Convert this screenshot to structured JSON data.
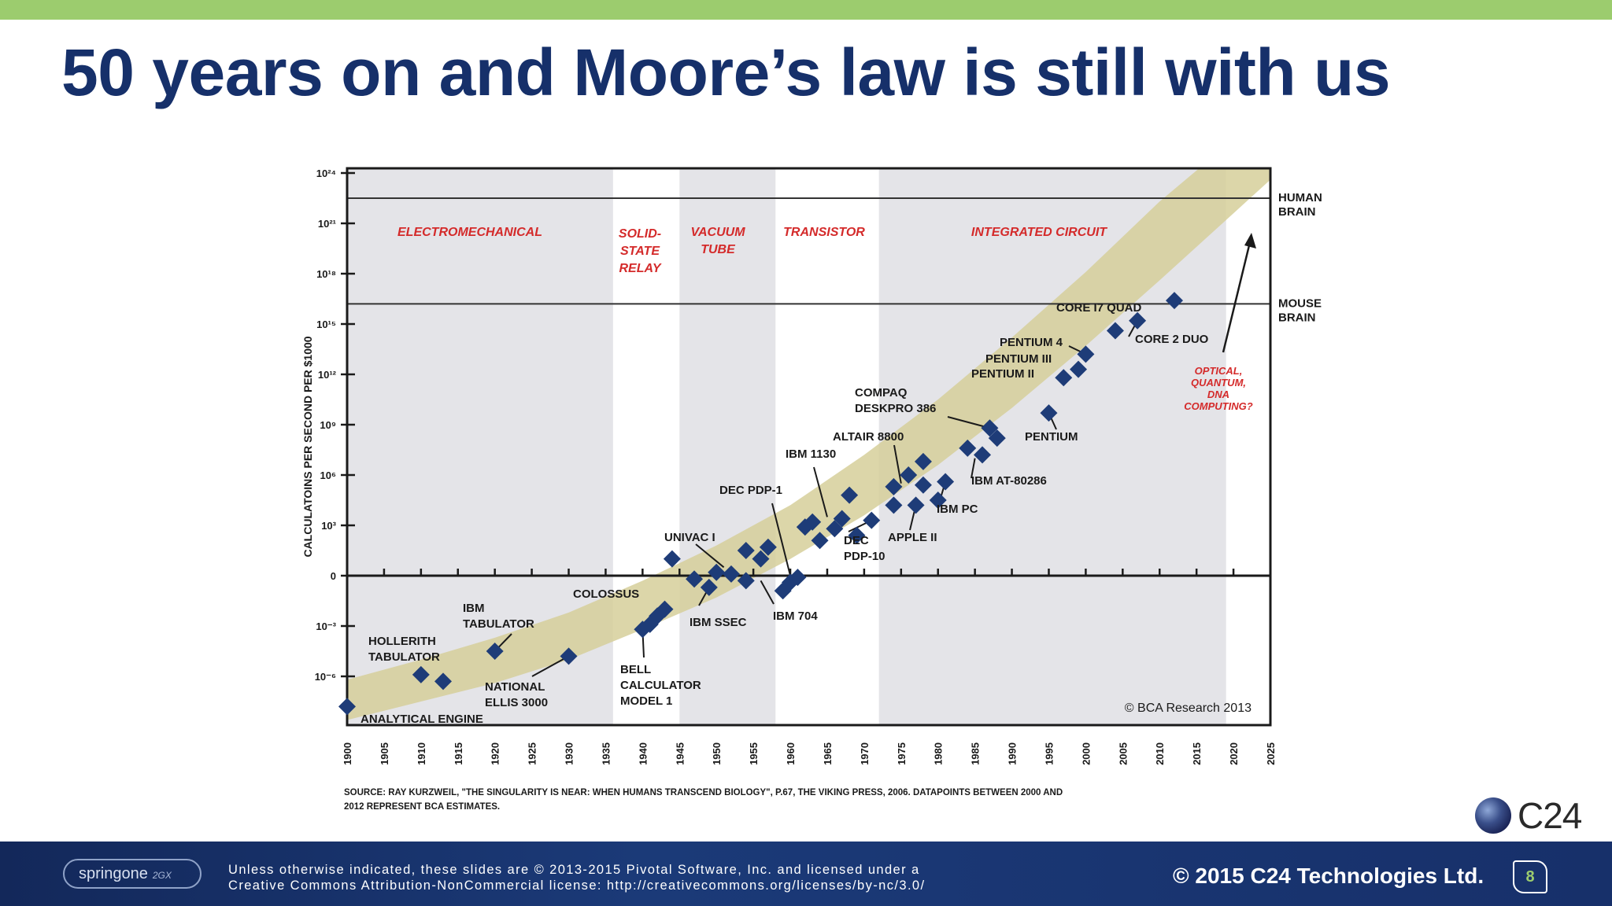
{
  "slide": {
    "title": "50 years on and Moore’s law is still with us"
  },
  "chart_data": {
    "type": "scatter",
    "ylabel": "CALCULATOINS PER SECOND PER $1000",
    "xlim": [
      1900,
      2025
    ],
    "x_ticks": [
      1900,
      1905,
      1910,
      1915,
      1920,
      1925,
      1930,
      1935,
      1940,
      1945,
      1950,
      1955,
      1960,
      1965,
      1970,
      1975,
      1980,
      1985,
      1990,
      1995,
      2000,
      2005,
      2010,
      2015,
      2020,
      2025
    ],
    "y_ticks": [
      {
        "exp": -6,
        "label": "10⁻⁶"
      },
      {
        "exp": -3,
        "label": "10⁻³"
      },
      {
        "exp": 0,
        "label": "0"
      },
      {
        "exp": 3,
        "label": "10³"
      },
      {
        "exp": 6,
        "label": "10⁶"
      },
      {
        "exp": 9,
        "label": "10⁹"
      },
      {
        "exp": 12,
        "label": "10¹²"
      },
      {
        "exp": 15,
        "label": "10¹⁵"
      },
      {
        "exp": 18,
        "label": "10¹⁸"
      },
      {
        "exp": 21,
        "label": "10²¹"
      },
      {
        "exp": 24,
        "label": "10²⁴"
      }
    ],
    "eras": [
      {
        "label": "ELECTROMECHANICAL",
        "start": 1900,
        "end": 1936,
        "shaded": true
      },
      {
        "label": "SOLID-\nSTATE\nRELAY",
        "start": 1936,
        "end": 1945,
        "shaded": false
      },
      {
        "label": "VACUUM\nTUBE",
        "start": 1945,
        "end": 1958,
        "shaded": true
      },
      {
        "label": "TRANSISTOR",
        "start": 1958,
        "end": 1972,
        "shaded": false
      },
      {
        "label": "INTEGRATED CIRCUIT",
        "start": 1972,
        "end": 2019,
        "shaded": true
      }
    ],
    "reference_lines": [
      {
        "label": "HUMAN\nBRAIN",
        "exp": 22.5
      },
      {
        "label": "MOUSE\nBRAIN",
        "exp": 16.2
      }
    ],
    "band": {
      "lower": [
        [
          1900,
          -8.6
        ],
        [
          1910,
          -7.5
        ],
        [
          1920,
          -6.4
        ],
        [
          1930,
          -5
        ],
        [
          1940,
          -3.2
        ],
        [
          1950,
          -1.3
        ],
        [
          1960,
          1
        ],
        [
          1970,
          3.6
        ],
        [
          1980,
          6.6
        ],
        [
          1990,
          10
        ],
        [
          2000,
          13.7
        ],
        [
          2010,
          17.6
        ],
        [
          2020,
          21.6
        ],
        [
          2025,
          23.6
        ]
      ],
      "upper": [
        [
          1900,
          -6.2
        ],
        [
          1910,
          -5
        ],
        [
          1920,
          -3.7
        ],
        [
          1930,
          -2.2
        ],
        [
          1940,
          -0.3
        ],
        [
          1950,
          1.8
        ],
        [
          1960,
          4.2
        ],
        [
          1970,
          7.2
        ],
        [
          1980,
          10.5
        ],
        [
          1990,
          14.2
        ],
        [
          2000,
          18.1
        ],
        [
          2010,
          22.3
        ],
        [
          2020,
          26
        ],
        [
          2025,
          27
        ]
      ]
    },
    "points": [
      [
        1900,
        -7.8
      ],
      [
        1910,
        -5.9
      ],
      [
        1913,
        -6.3
      ],
      [
        1920,
        -4.5
      ],
      [
        1930,
        -4.8
      ],
      [
        1940,
        -3.2
      ],
      [
        1941,
        -2.9
      ],
      [
        1942,
        -2.4
      ],
      [
        1943,
        -2.0
      ],
      [
        1944,
        1.0
      ],
      [
        1947,
        -0.2
      ],
      [
        1949,
        -0.7
      ],
      [
        1950,
        0.2
      ],
      [
        1952,
        0.1
      ],
      [
        1954,
        1.5
      ],
      [
        1954,
        -0.3
      ],
      [
        1956,
        1.0
      ],
      [
        1957,
        1.7
      ],
      [
        1959,
        -0.9
      ],
      [
        1960,
        -0.4
      ],
      [
        1961,
        -0.1
      ],
      [
        1962,
        2.9
      ],
      [
        1963,
        3.2
      ],
      [
        1964,
        2.1
      ],
      [
        1966,
        2.8
      ],
      [
        1967,
        3.4
      ],
      [
        1968,
        4.8
      ],
      [
        1969,
        2.4
      ],
      [
        1971,
        3.3
      ],
      [
        1974,
        4.2
      ],
      [
        1974,
        5.3
      ],
      [
        1976,
        6.0
      ],
      [
        1977,
        4.2
      ],
      [
        1978,
        5.4
      ],
      [
        1978,
        6.8
      ],
      [
        1980,
        4.5
      ],
      [
        1981,
        5.6
      ],
      [
        1984,
        7.6
      ],
      [
        1986,
        7.2
      ],
      [
        1987,
        8.8
      ],
      [
        1988,
        8.2
      ],
      [
        1995,
        9.7
      ],
      [
        1997,
        11.8
      ],
      [
        1999,
        12.3
      ],
      [
        2000,
        13.2
      ],
      [
        2004,
        14.6
      ],
      [
        2007,
        15.2
      ],
      [
        2012,
        16.4
      ]
    ],
    "annotations": [
      {
        "text": "ANALYTICAL ENGINE",
        "x": 1900,
        "y": -7.8
      },
      {
        "text": "HOLLERITH\nTABULATOR",
        "x": 1910,
        "y": -5.9
      },
      {
        "text": "IBM\nTABULATOR",
        "x": 1920,
        "y": -4.5
      },
      {
        "text": "NATIONAL\nELLIS 3000",
        "x": 1930,
        "y": -4.8
      },
      {
        "text": "COLOSSUS",
        "x": 1943,
        "y": -2.0
      },
      {
        "text": "BELL\nCALCULATOR\nMODEL 1",
        "x": 1940,
        "y": -3.2
      },
      {
        "text": "UNIVAC I",
        "x": 1951,
        "y": 0.5
      },
      {
        "text": "IBM SSEC",
        "x": 1949,
        "y": -0.7
      },
      {
        "text": "IBM 704",
        "x": 1956,
        "y": -0.3
      },
      {
        "text": "DEC PDP-1",
        "x": 1960,
        "y": 0
      },
      {
        "text": "IBM 1130",
        "x": 1965,
        "y": 3.5
      },
      {
        "text": "DEC\nPDP-10",
        "x": 1971,
        "y": 3.3
      },
      {
        "text": "ALTAIR 8800",
        "x": 1975,
        "y": 5.5
      },
      {
        "text": "APPLE II",
        "x": 1977,
        "y": 4.2
      },
      {
        "text": "IBM PC",
        "x": 1981,
        "y": 5.6
      },
      {
        "text": "IBM AT-80286",
        "x": 1985,
        "y": 7.0
      },
      {
        "text": "COMPAQ\nDESKPRO 386",
        "x": 1987,
        "y": 8.8
      },
      {
        "text": "PENTIUM",
        "x": 1995,
        "y": 9.7
      },
      {
        "text": "PENTIUM II",
        "x": 1997,
        "y": 11.8
      },
      {
        "text": "PENTIUM III",
        "x": 1999,
        "y": 12.3
      },
      {
        "text": "PENTIUM 4",
        "x": 2000,
        "y": 13.2
      },
      {
        "text": "CORE 2 DUO",
        "x": 2007,
        "y": 15.2
      },
      {
        "text": "CORE I7 QUAD",
        "x": 2012,
        "y": 16.4
      },
      {
        "text": "OPTICAL,\nQUANTUM,\nDNA\nCOMPUTING?",
        "x": 2022,
        "y": 20
      }
    ],
    "watermark": "© BCA Research 2013",
    "source_note": "SOURCE: RAY KURZWEIL, \"THE SINGULARITY IS NEAR: WHEN HUMANS TRANSCEND BIOLOGY\", P.67, THE VIKING PRESS, 2006. DATAPOINTS BETWEEN 2000 AND 2012 REPRESENT BCA ESTIMATES.",
    "colors": {
      "era_shade": "#e4e4e8",
      "band": "#d6cf9a",
      "point": "#1e3c78",
      "era_label": "#d42a2a",
      "axis": "#1a1a1a"
    }
  },
  "branding": {
    "logo_text": "C24",
    "springone_text": "springone",
    "springone_sub": "2GX",
    "license": "Unless otherwise indicated, these slides are © 2013-2015 Pivotal Software, Inc. and licensed under a\nCreative Commons Attribution-NonCommercial license: http://creativecommons.org/licenses/by-nc/3.0/",
    "copyright": "© 2015 C24 Technologies Ltd.",
    "page_number": "8"
  }
}
